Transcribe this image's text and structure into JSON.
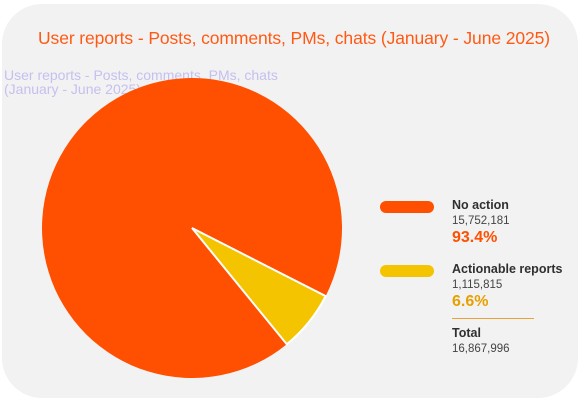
{
  "chart_data": {
    "type": "pie",
    "title": "User reports - Posts, comments, PMs, chats  (January - June 2025)",
    "legend_position": "right",
    "slices": [
      {
        "label": "No action",
        "count": "15,752,181",
        "value": 15752181,
        "percent": "93.4%",
        "color": "#ff4f00"
      },
      {
        "label": "Actionable reports",
        "count": "1,115,815",
        "value": 1115815,
        "percent": "6.6%",
        "color": "#f5c400"
      }
    ],
    "total_label": "Total",
    "total_value": "16,867,996"
  },
  "ghost_text": {
    "line1": "User reports - Posts, comments, PMs, chats",
    "line2": "(January - June 2025)"
  },
  "colors": {
    "title": "#ff5a14",
    "no_action_pct": "#ff4f00",
    "actionable_pct": "#e8a000",
    "divider": "#e8a23a"
  }
}
